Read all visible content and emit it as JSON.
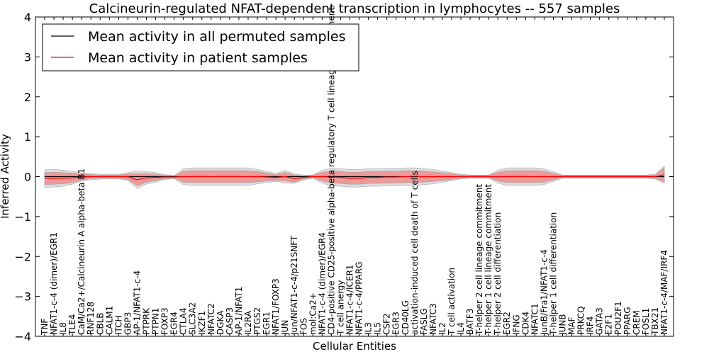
{
  "chart_data": {
    "type": "line",
    "title": "Calcineurin-regulated NFAT-dependent transcription in lymphocytes -- 557 samples",
    "xlabel": "Cellular Entities",
    "ylabel": "Inferred Activity",
    "ylim": [
      -4,
      4
    ],
    "yticks": [
      -4,
      -3,
      -2,
      -1,
      0,
      1,
      2,
      3,
      4
    ],
    "ytick_labels": [
      "−4",
      "−3",
      "−2",
      "−1",
      "0",
      "1",
      "2",
      "3",
      "4"
    ],
    "legend_position": "top-left",
    "categories": [
      "TNF",
      "NFAT1-c-4 (dimer)/EGR1",
      "IL8",
      "TLE4",
      "CaM/Ca2+/Calcineurin A alpha-beta B1",
      "RNF128",
      "CBLB",
      "CALM1",
      "ITCH",
      "GBP3",
      "AP-1/NFAT1-c-4",
      "PTPRK",
      "PTPN1",
      "FOXP3",
      "EGR4",
      "CTLA4",
      "SLC3A2",
      "IKZF1",
      "NFATC2",
      "DGKA",
      "CASP3",
      "AP-1/NFAT1",
      "IL2RA",
      "PTGS2",
      "EGR1",
      "NFAT1/FOXP3",
      "JUN",
      "Jun/NFAT1-c-4/p21SNFT",
      "FOS",
      "mol:Ca2+",
      "NFAT1-c-4 (dimer)/EGR4",
      "CD4-positive CD25-positive alpha-beta regulatory T cell lineage commitment",
      "T cell anergy",
      "NFAT1-c-4/ICER1",
      "NFAT1-c-4/PPARG",
      "IL3",
      "IL5",
      "CSF2",
      "EGR3",
      "CD40LG",
      "activation-induced cell death of T cells",
      "FASLG",
      "NFATC3",
      "IL2",
      "T cell activation",
      "IL4",
      "BATF3",
      "T-helper 2 cell lineage commitment",
      "T-helper 1 cell lineage commitment",
      "T-helper 2 cell differentiation",
      "EGR2",
      "IFNG",
      "CDK4",
      "NFATC1",
      "JunB/Fra1/NFAT1-c-4",
      "T-helper 1 cell differentiation",
      "JUNB",
      "MAF",
      "PRKCQ",
      "IRF4",
      "GATA3",
      "E2F1",
      "POU2F1",
      "PPARG",
      "CREM",
      "FOSL1",
      "TBX21",
      "NFAT1-c-4/MAF/IRF4"
    ],
    "series": [
      {
        "name": "Mean activity in all permuted samples",
        "color": "#000000",
        "values": [
          0.0,
          0.0,
          0.0,
          0.0,
          0.0,
          0.0,
          0.0,
          0.0,
          0.0,
          0.0,
          0.0,
          0.0,
          0.0,
          0.0,
          0.0,
          0.0,
          0.0,
          0.0,
          0.0,
          0.0,
          0.0,
          0.0,
          0.0,
          0.0,
          0.0,
          0.0,
          0.0,
          0.0,
          0.0,
          0.0,
          0.0,
          0.0,
          0.0,
          0.0,
          0.0,
          0.0,
          0.0,
          0.0,
          0.0,
          0.0,
          0.0,
          0.0,
          0.0,
          0.0,
          0.0,
          0.0,
          0.0,
          0.0,
          0.0,
          0.0,
          0.0,
          0.0,
          0.0,
          0.0,
          0.0,
          0.0,
          0.0,
          0.0,
          0.0,
          0.0,
          0.0,
          0.0,
          0.0,
          0.0,
          0.0,
          0.0,
          0.0,
          0.0
        ]
      },
      {
        "name": "Mean activity in patient samples",
        "color": "#ff0000",
        "values": [
          -0.05,
          -0.04,
          -0.04,
          -0.03,
          -0.01,
          0.0,
          0.0,
          0.0,
          0.0,
          0.0,
          -0.08,
          -0.03,
          -0.02,
          -0.01,
          -0.01,
          0.0,
          0.0,
          0.0,
          0.0,
          0.0,
          0.0,
          0.0,
          0.0,
          0.0,
          -0.01,
          -0.02,
          0.0,
          -0.05,
          -0.02,
          0.0,
          0.0,
          -0.01,
          -0.02,
          -0.04,
          -0.04,
          -0.02,
          -0.02,
          -0.01,
          -0.01,
          0.0,
          0.0,
          0.0,
          0.0,
          0.0,
          0.0,
          0.0,
          0.0,
          0.0,
          0.0,
          0.0,
          0.0,
          0.0,
          0.0,
          0.0,
          0.0,
          0.0,
          0.0,
          0.0,
          0.0,
          0.0,
          0.0,
          0.0,
          0.0,
          0.0,
          0.0,
          0.0,
          0.0,
          0.05
        ]
      }
    ],
    "permuted_band_half_width": [
      0.22,
      0.22,
      0.2,
      0.16,
      0.1,
      0.08,
      0.06,
      0.06,
      0.06,
      0.1,
      0.22,
      0.16,
      0.12,
      0.06,
      0.04,
      0.2,
      0.22,
      0.22,
      0.22,
      0.22,
      0.22,
      0.22,
      0.22,
      0.18,
      0.14,
      0.1,
      0.16,
      0.12,
      0.06,
      0.04,
      0.16,
      0.22,
      0.22,
      0.22,
      0.22,
      0.22,
      0.22,
      0.22,
      0.22,
      0.22,
      0.22,
      0.2,
      0.18,
      0.14,
      0.1,
      0.06,
      0.04,
      0.04,
      0.04,
      0.16,
      0.22,
      0.22,
      0.22,
      0.22,
      0.2,
      0.12,
      0.04,
      0.04,
      0.04,
      0.04,
      0.04,
      0.04,
      0.04,
      0.04,
      0.04,
      0.04,
      0.06,
      0.22
    ],
    "patient_band_half_width": [
      0.15,
      0.15,
      0.14,
      0.12,
      0.08,
      0.05,
      0.04,
      0.04,
      0.04,
      0.07,
      0.15,
      0.11,
      0.08,
      0.04,
      0.03,
      0.14,
      0.15,
      0.15,
      0.15,
      0.15,
      0.15,
      0.15,
      0.15,
      0.13,
      0.1,
      0.07,
      0.11,
      0.09,
      0.04,
      0.03,
      0.11,
      0.15,
      0.15,
      0.15,
      0.15,
      0.15,
      0.15,
      0.15,
      0.15,
      0.15,
      0.15,
      0.14,
      0.12,
      0.1,
      0.07,
      0.04,
      0.03,
      0.03,
      0.03,
      0.11,
      0.15,
      0.15,
      0.15,
      0.15,
      0.14,
      0.08,
      0.03,
      0.03,
      0.03,
      0.03,
      0.03,
      0.03,
      0.03,
      0.03,
      0.03,
      0.03,
      0.04,
      0.18
    ],
    "band_colors": {
      "permuted": "#d9d9d9",
      "patient": "#f08a8a"
    }
  }
}
